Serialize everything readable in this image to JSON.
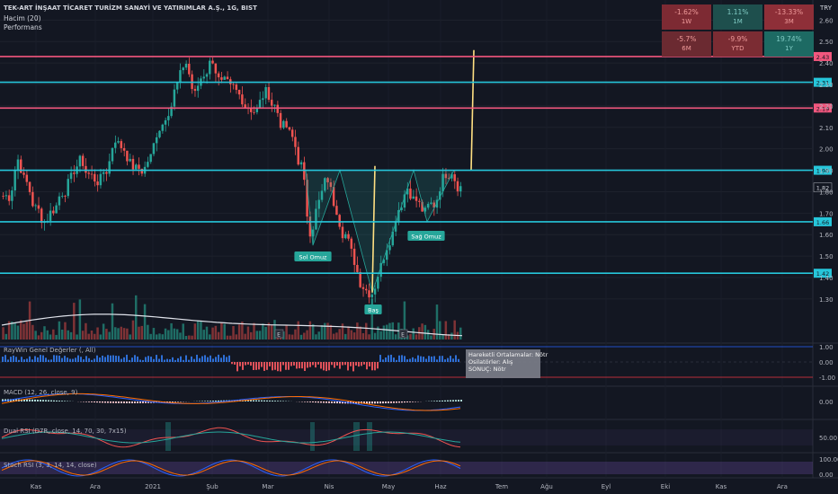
{
  "header": {
    "title": "TEK-ART İNŞAAT TİCARET TURİZM SANAYİ VE YATIRIMLAR A.Ş., 1G, BIST",
    "volume_label": "Hacim (20)",
    "perf_label": "Performans",
    "currency": "TRY"
  },
  "performance": [
    {
      "value": "-1.62%",
      "label": "1W",
      "color": "#7d2a33"
    },
    {
      "value": "1.11%",
      "label": "1M",
      "color": "#1e4f4d"
    },
    {
      "value": "-13.33%",
      "label": "3M",
      "color": "#8e2f38"
    },
    {
      "value": "-5.7%",
      "label": "6M",
      "color": "#6b2a31"
    },
    {
      "value": "-9.9%",
      "label": "YTD",
      "color": "#7b2c33"
    },
    {
      "value": "19.74%",
      "label": "1Y",
      "color": "#1d6a63"
    }
  ],
  "pattern_labels": {
    "left_shoulder": "Sol Omuz",
    "head": "Baş",
    "right_shoulder": "Sağ Omuz"
  },
  "indicators": {
    "raywin_title": "RayWin Genel Değerler (, All)",
    "raywin_box": [
      "Hareketli Ortalamalar:    Nötr",
      "Osilatörler: Alış",
      "SONUÇ:  Nötr"
    ],
    "macd_title": "MACD (12, 26, close, 9)",
    "rsi_title": "Dual RSI (D7R, close, 14, 70, 30, 7x15)",
    "stoch_title": "Stoch RSI (3, 3, 14, 14, close)",
    "earnings_marker": "E"
  },
  "chart_data": {
    "type": "candlestick",
    "symbol": "TEK-ART İNŞAAT TİCARET TURİZM SANAYİ VE YATIRIMLAR A.Ş.",
    "timeframe": "1G",
    "price_axis": [
      2.6,
      2.5,
      2.4,
      2.3,
      2.2,
      2.1,
      2.0,
      1.9,
      1.8,
      1.7,
      1.6,
      1.5,
      1.4,
      1.3
    ],
    "price_axis_labels": [
      "2.60",
      "2.50",
      "2.40",
      "2.30",
      "2.20",
      "2.10",
      "2.00",
      "1.90",
      "1.80",
      "1.70",
      "1.60",
      "1.50",
      "1.40",
      "1.30"
    ],
    "ylim": [
      1.22,
      2.66
    ],
    "horizontal_levels": [
      {
        "price": 2.43,
        "label": "2.43",
        "color": "#f2577e"
      },
      {
        "price": 2.31,
        "label": "2.31",
        "color": "#26c6da"
      },
      {
        "price": 2.19,
        "label": "2.19",
        "color": "#f2577e"
      },
      {
        "price": 1.9,
        "label": "1.90",
        "color": "#26c6da"
      },
      {
        "price": 1.66,
        "label": "1.66",
        "color": "#26c6da"
      },
      {
        "price": 1.42,
        "label": "1.42",
        "color": "#26c6da"
      }
    ],
    "last_price": {
      "price": 1.82,
      "label": "1.82"
    },
    "x_labels": [
      "Kas",
      "Ara",
      "2021",
      "Şub",
      "Mar",
      "Nis",
      "May",
      "Haz",
      "Tem",
      "Ağu",
      "Eyl",
      "Eki",
      "Kas",
      "Ara"
    ],
    "close_series": [
      1.78,
      1.95,
      1.84,
      1.72,
      1.66,
      1.72,
      1.8,
      1.86,
      1.94,
      1.88,
      1.85,
      1.9,
      2.05,
      2.0,
      1.92,
      1.9,
      1.96,
      2.1,
      2.18,
      2.3,
      2.4,
      2.25,
      2.35,
      2.42,
      2.3,
      2.28,
      2.25,
      2.2,
      2.18,
      2.26,
      2.2,
      2.1,
      2.05,
      1.92,
      1.62,
      1.75,
      1.86,
      1.72,
      1.6,
      1.48,
      1.36,
      1.33,
      1.45,
      1.58,
      1.72,
      1.82,
      1.76,
      1.7,
      1.74,
      1.86,
      1.9,
      1.82
    ],
    "pattern_points": [
      {
        "name": "Sol Omuz",
        "price": 1.55
      },
      {
        "name": "Baş",
        "price": 1.33
      },
      {
        "name": "Sağ Omuz",
        "price": 1.66
      }
    ],
    "neckline": 1.9,
    "target_price": 2.46,
    "indicator_axes": {
      "raywin": [
        "1.00",
        "0.00",
        "-1.00"
      ],
      "macd": [
        "0.00"
      ],
      "rsi": [
        "50.00"
      ],
      "stoch": [
        "100.00",
        "0.00"
      ]
    }
  }
}
